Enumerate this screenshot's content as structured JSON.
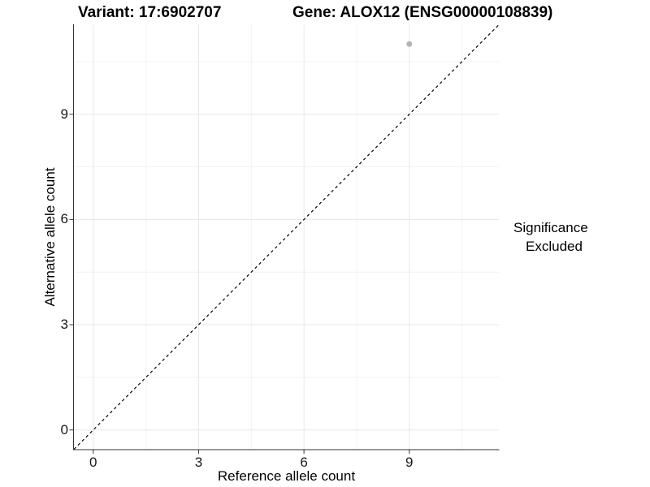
{
  "chart_data": {
    "type": "scatter",
    "titles": [
      "Variant: 17:6902707",
      "Gene: ALOX12 (ENSG00000108839)"
    ],
    "xlabel": "Reference allele count",
    "ylabel": "Alternative allele count",
    "xlim": [
      -0.55,
      11.55
    ],
    "ylim": [
      -0.55,
      11.55
    ],
    "xticks": [
      0,
      3,
      6,
      9
    ],
    "yticks": [
      0,
      3,
      6,
      9
    ],
    "minor_gridlines": [
      1.5,
      4.5,
      7.5,
      10.5
    ],
    "grid": "major and minor, light grey on white panel",
    "points": [
      {
        "x": 9,
        "y": 11,
        "series": "Excluded"
      }
    ],
    "reference_line": {
      "equation": "y = x",
      "style": "dashed",
      "color": "#000000"
    },
    "legend": {
      "title": "Significance",
      "position": "right",
      "entries": [
        {
          "label": "Excluded",
          "marker": "circle",
          "color": "#b4b4b4"
        }
      ]
    },
    "colors": {
      "point": "#b4b4b4",
      "grid_major": "#e7e7e7",
      "grid_minor": "#f2f2f2",
      "axis_line": "#333333",
      "tick_mark": "#333333",
      "text": "#000000",
      "background": "#ffffff"
    }
  }
}
